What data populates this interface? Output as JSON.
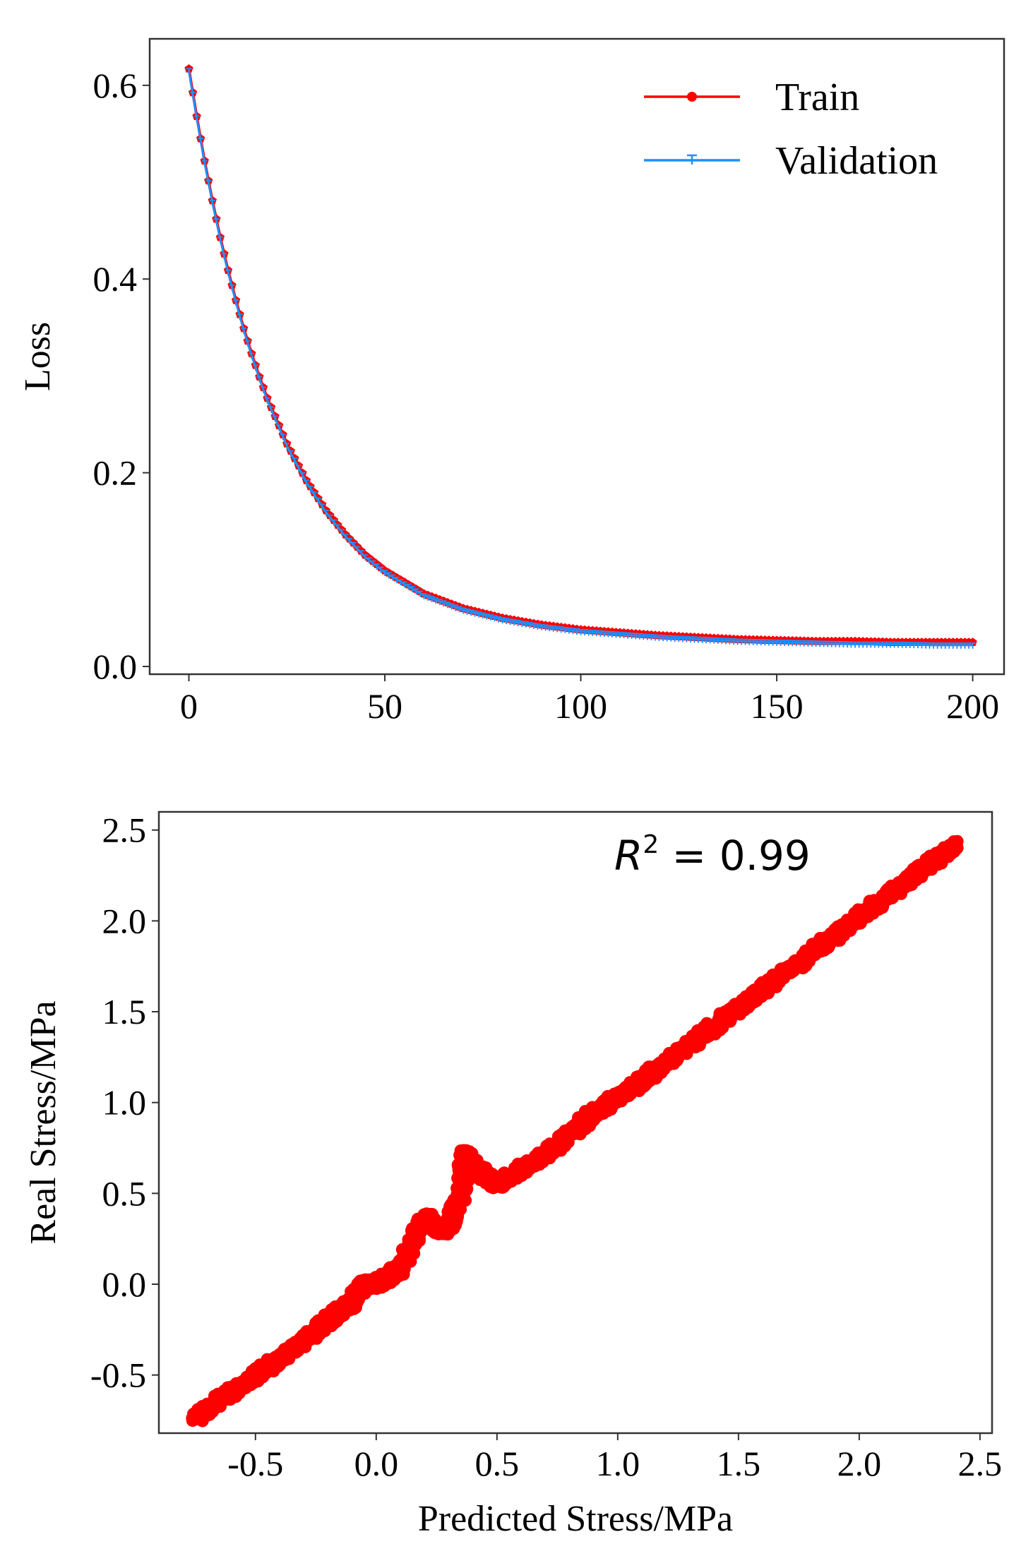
{
  "colors": {
    "train": "#ff0000",
    "validation": "#1e90ff",
    "scatter": "#ff0000",
    "axis": "#333333"
  },
  "chart_data": [
    {
      "type": "line",
      "xlabel": "",
      "ylabel": "Loss",
      "xlim": [
        -10,
        208
      ],
      "ylim": [
        -0.008,
        0.648
      ],
      "xticks": [
        0,
        50,
        100,
        150,
        200
      ],
      "xtick_labels": [
        "0",
        "50",
        "100",
        "150",
        "200"
      ],
      "yticks": [
        0.0,
        0.2,
        0.4,
        0.6
      ],
      "ytick_labels": [
        "0.0",
        "0.2",
        "0.4",
        "0.6"
      ],
      "grid": false,
      "legend": "top-right",
      "series": [
        {
          "name": "Train",
          "marker": "pentagon",
          "x": [
            0,
            2,
            4,
            6,
            8,
            10,
            12,
            14,
            16,
            18,
            20,
            25,
            30,
            35,
            40,
            45,
            50,
            60,
            70,
            80,
            90,
            100,
            110,
            120,
            130,
            140,
            150,
            160,
            170,
            180,
            190,
            200
          ],
          "values": [
            0.617,
            0.568,
            0.522,
            0.481,
            0.443,
            0.409,
            0.378,
            0.349,
            0.323,
            0.299,
            0.277,
            0.23,
            0.192,
            0.161,
            0.136,
            0.115,
            0.099,
            0.075,
            0.06,
            0.05,
            0.043,
            0.038,
            0.035,
            0.032,
            0.03,
            0.028,
            0.027,
            0.026,
            0.026,
            0.025,
            0.025,
            0.025
          ]
        },
        {
          "name": "Validation",
          "marker": "tri-down",
          "x": [
            0,
            2,
            4,
            6,
            8,
            10,
            12,
            14,
            16,
            18,
            20,
            25,
            30,
            35,
            40,
            45,
            50,
            60,
            70,
            80,
            90,
            100,
            110,
            120,
            130,
            140,
            150,
            160,
            170,
            180,
            190,
            200
          ],
          "values": [
            0.615,
            0.566,
            0.52,
            0.479,
            0.441,
            0.407,
            0.376,
            0.347,
            0.321,
            0.297,
            0.275,
            0.228,
            0.19,
            0.159,
            0.134,
            0.113,
            0.097,
            0.073,
            0.058,
            0.048,
            0.041,
            0.036,
            0.033,
            0.03,
            0.028,
            0.026,
            0.025,
            0.024,
            0.023,
            0.023,
            0.022,
            0.022
          ]
        }
      ]
    },
    {
      "type": "scatter",
      "xlabel": "Predicted Stress/MPa",
      "ylabel": "Real Stress/MPa",
      "xlim": [
        -0.9,
        2.55
      ],
      "ylim": [
        -0.82,
        2.6
      ],
      "xticks": [
        -0.5,
        0.0,
        0.5,
        1.0,
        1.5,
        2.0,
        2.5
      ],
      "xtick_labels": [
        "-0.5",
        "0.0",
        "0.5",
        "1.0",
        "1.5",
        "2.0",
        "2.5"
      ],
      "yticks": [
        -0.5,
        0.0,
        0.5,
        1.0,
        1.5,
        2.0,
        2.5
      ],
      "ytick_labels": [
        "-0.5",
        "0.0",
        "0.5",
        "1.0",
        "1.5",
        "2.0",
        "2.5"
      ],
      "grid": false,
      "annotation": {
        "prefix": "R",
        "superscript": "2",
        "text": " = 0.99"
      },
      "x": [
        -0.75,
        -0.65,
        -0.55,
        -0.45,
        -0.35,
        -0.25,
        -0.2,
        -0.15,
        -0.1,
        -0.05,
        0.0,
        0.05,
        0.1,
        0.2,
        0.25,
        0.3,
        0.35,
        0.37,
        0.4,
        0.45,
        0.5,
        0.6,
        0.7,
        0.8,
        0.9,
        1.0,
        1.1,
        1.2,
        1.3,
        1.4,
        1.5,
        1.6,
        1.7,
        1.8,
        1.9,
        2.0,
        2.1,
        2.2,
        2.3,
        2.4
      ],
      "values": [
        -0.74,
        -0.64,
        -0.55,
        -0.46,
        -0.36,
        -0.26,
        -0.2,
        -0.15,
        -0.1,
        0.0,
        0.0,
        0.04,
        0.09,
        0.38,
        0.3,
        0.3,
        0.5,
        0.72,
        0.65,
        0.6,
        0.55,
        0.63,
        0.71,
        0.82,
        0.94,
        1.03,
        1.12,
        1.22,
        1.32,
        1.42,
        1.52,
        1.62,
        1.72,
        1.82,
        1.92,
        2.02,
        2.12,
        2.22,
        2.32,
        2.42
      ]
    }
  ]
}
